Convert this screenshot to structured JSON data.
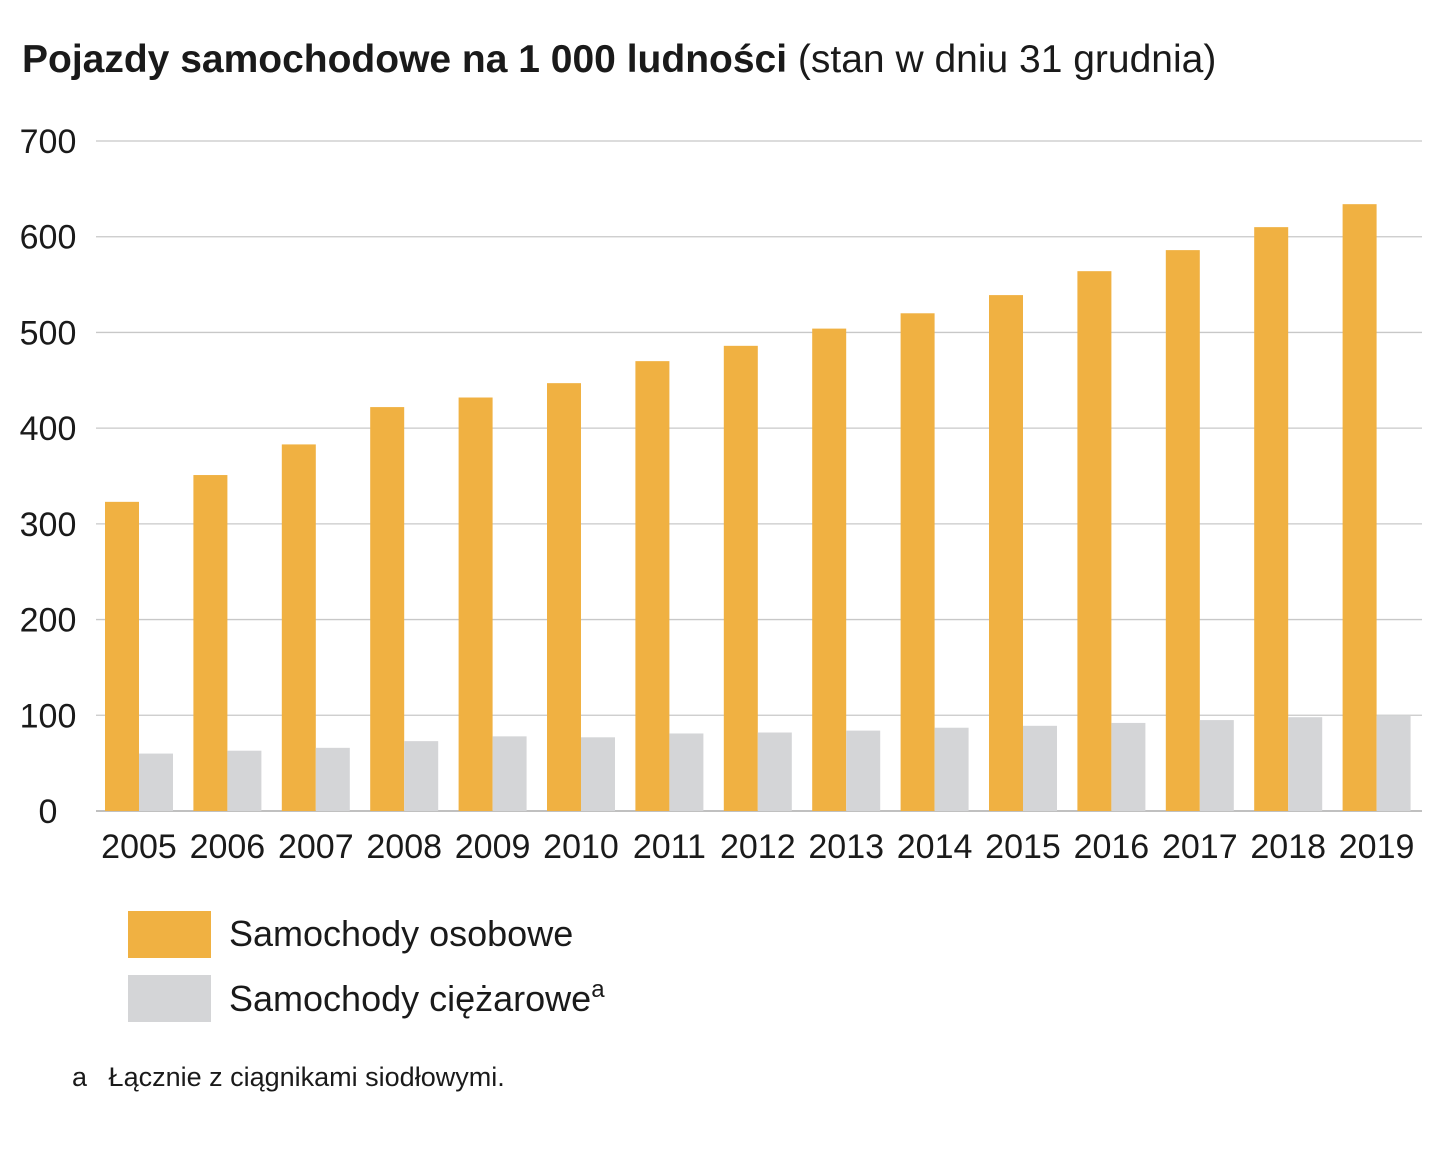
{
  "title": {
    "bold": "Pojazdy samochodowe na 1 000 ludności",
    "light": "(stan w dniu 31 grudnia)"
  },
  "chart_data": {
    "type": "bar",
    "categories": [
      "2005",
      "2006",
      "2007",
      "2008",
      "2009",
      "2010",
      "2011",
      "2012",
      "2013",
      "2014",
      "2015",
      "2016",
      "2017",
      "2018",
      "2019"
    ],
    "series": [
      {
        "name": "Samochody osobowe",
        "color": "#f0b142",
        "values": [
          323,
          351,
          383,
          422,
          432,
          447,
          470,
          486,
          504,
          520,
          539,
          564,
          586,
          610,
          634
        ]
      },
      {
        "name": "Samochody ciężarowe",
        "color": "#d4d5d7",
        "values": [
          60,
          63,
          66,
          73,
          78,
          77,
          81,
          82,
          84,
          87,
          89,
          92,
          95,
          98,
          100
        ]
      }
    ],
    "yticks": [
      0,
      100,
      200,
      300,
      400,
      500,
      600,
      700
    ],
    "ylim": [
      0,
      700
    ],
    "grid": true,
    "legend_position": "bottom-left"
  },
  "legend": {
    "items": [
      {
        "label": "Samochody osobowe",
        "sup": "",
        "color": "#f0b142"
      },
      {
        "label": "Samochody ciężarowe",
        "sup": "a",
        "color": "#d4d5d7"
      }
    ]
  },
  "footnote": {
    "mark": "a",
    "text": "Łącznie z ciągnikami siodłowymi."
  }
}
